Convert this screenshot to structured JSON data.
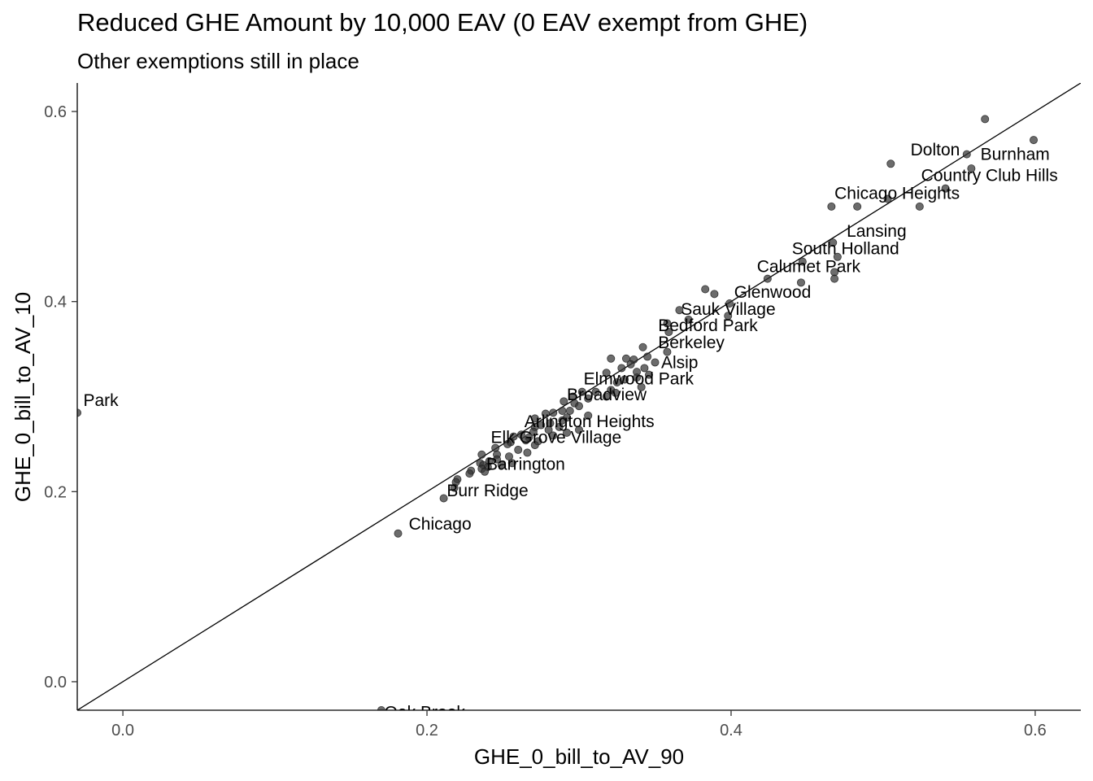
{
  "title": "Reduced GHE Amount by 10,000 EAV (0 EAV exempt from GHE)",
  "subtitle": "Other exemptions still in place",
  "chart_data": {
    "type": "scatter",
    "title": "Reduced GHE Amount by 10,000 EAV (0 EAV exempt from GHE)",
    "subtitle": "Other exemptions still in place",
    "xlabel": "GHE_0_bill_to_AV_90",
    "ylabel": "GHE_0_bill_to_AV_10",
    "xlim": [
      -0.03,
      0.63
    ],
    "ylim": [
      -0.03,
      0.63
    ],
    "x_ticks": [
      0.0,
      0.2,
      0.4,
      0.6
    ],
    "x_tick_labels": [
      "0.0",
      "0.2",
      "0.4",
      "0.6"
    ],
    "y_ticks": [
      0.0,
      0.2,
      0.4,
      0.6
    ],
    "y_tick_labels": [
      "0.0",
      "0.2",
      "0.4",
      "0.6"
    ],
    "grid": false,
    "reference_line": {
      "slope": 1,
      "intercept": 0
    },
    "point_color": "#333333",
    "points": [
      {
        "x": 0.567,
        "y": 0.592
      },
      {
        "x": 0.599,
        "y": 0.57
      },
      {
        "x": 0.555,
        "y": 0.555
      },
      {
        "x": 0.505,
        "y": 0.545
      },
      {
        "x": 0.558,
        "y": 0.54
      },
      {
        "x": 0.541,
        "y": 0.519
      },
      {
        "x": 0.503,
        "y": 0.508
      },
      {
        "x": 0.466,
        "y": 0.5
      },
      {
        "x": 0.483,
        "y": 0.5
      },
      {
        "x": 0.524,
        "y": 0.5
      },
      {
        "x": 0.467,
        "y": 0.462
      },
      {
        "x": 0.47,
        "y": 0.447
      },
      {
        "x": 0.447,
        "y": 0.442
      },
      {
        "x": 0.468,
        "y": 0.431
      },
      {
        "x": 0.468,
        "y": 0.424
      },
      {
        "x": 0.424,
        "y": 0.424
      },
      {
        "x": 0.446,
        "y": 0.42
      },
      {
        "x": 0.383,
        "y": 0.413
      },
      {
        "x": 0.389,
        "y": 0.408
      },
      {
        "x": 0.399,
        "y": 0.398
      },
      {
        "x": 0.366,
        "y": 0.391
      },
      {
        "x": 0.398,
        "y": 0.385
      },
      {
        "x": 0.372,
        "y": 0.381
      },
      {
        "x": 0.358,
        "y": 0.377
      },
      {
        "x": 0.359,
        "y": 0.368
      },
      {
        "x": 0.342,
        "y": 0.352
      },
      {
        "x": 0.358,
        "y": 0.347
      },
      {
        "x": 0.345,
        "y": 0.342
      },
      {
        "x": 0.321,
        "y": 0.34
      },
      {
        "x": 0.331,
        "y": 0.34
      },
      {
        "x": 0.336,
        "y": 0.339
      },
      {
        "x": 0.35,
        "y": 0.336
      },
      {
        "x": 0.334,
        "y": 0.334
      },
      {
        "x": 0.328,
        "y": 0.33
      },
      {
        "x": 0.343,
        "y": 0.33
      },
      {
        "x": 0.338,
        "y": 0.326
      },
      {
        "x": 0.346,
        "y": 0.323
      },
      {
        "x": 0.318,
        "y": 0.325
      },
      {
        "x": 0.338,
        "y": 0.32
      },
      {
        "x": 0.33,
        "y": 0.318
      },
      {
        "x": 0.325,
        "y": 0.315
      },
      {
        "x": 0.341,
        "y": 0.31
      },
      {
        "x": 0.321,
        "y": 0.307
      },
      {
        "x": 0.302,
        "y": 0.305
      },
      {
        "x": 0.311,
        "y": 0.305
      },
      {
        "x": 0.324,
        "y": 0.304
      },
      {
        "x": 0.296,
        "y": 0.3
      },
      {
        "x": 0.318,
        "y": 0.3
      },
      {
        "x": 0.306,
        "y": 0.298
      },
      {
        "x": 0.29,
        "y": 0.295
      },
      {
        "x": 0.297,
        "y": 0.293
      },
      {
        "x": 0.3,
        "y": 0.29
      },
      {
        "x": 0.294,
        "y": 0.285
      },
      {
        "x": 0.289,
        "y": 0.285
      },
      {
        "x": 0.283,
        "y": 0.283
      },
      {
        "x": 0.278,
        "y": 0.282
      },
      {
        "x": 0.306,
        "y": 0.28
      },
      {
        "x": 0.292,
        "y": 0.278
      },
      {
        "x": 0.289,
        "y": 0.275
      },
      {
        "x": 0.271,
        "y": 0.277
      },
      {
        "x": 0.281,
        "y": 0.272
      },
      {
        "x": 0.275,
        "y": 0.27
      },
      {
        "x": 0.271,
        "y": 0.268
      },
      {
        "x": 0.287,
        "y": 0.268
      },
      {
        "x": 0.28,
        "y": 0.265
      },
      {
        "x": 0.27,
        "y": 0.263
      },
      {
        "x": 0.3,
        "y": 0.265
      },
      {
        "x": 0.292,
        "y": 0.262
      },
      {
        "x": 0.283,
        "y": 0.259
      },
      {
        "x": 0.262,
        "y": 0.26
      },
      {
        "x": 0.257,
        "y": 0.258
      },
      {
        "x": 0.267,
        "y": 0.257
      },
      {
        "x": 0.265,
        "y": 0.254
      },
      {
        "x": 0.273,
        "y": 0.253
      },
      {
        "x": 0.255,
        "y": 0.252
      },
      {
        "x": 0.253,
        "y": 0.25
      },
      {
        "x": 0.271,
        "y": 0.249
      },
      {
        "x": 0.245,
        "y": 0.246
      },
      {
        "x": 0.26,
        "y": 0.244
      },
      {
        "x": 0.266,
        "y": 0.241
      },
      {
        "x": 0.246,
        "y": 0.239
      },
      {
        "x": 0.236,
        "y": 0.239
      },
      {
        "x": 0.254,
        "y": 0.237
      },
      {
        "x": 0.246,
        "y": 0.234
      },
      {
        "x": 0.241,
        "y": 0.232
      },
      {
        "x": 0.235,
        "y": 0.23
      },
      {
        "x": 0.256,
        "y": 0.23
      },
      {
        "x": 0.237,
        "y": 0.228
      },
      {
        "x": 0.249,
        "y": 0.228
      },
      {
        "x": 0.24,
        "y": 0.226
      },
      {
        "x": 0.236,
        "y": 0.224
      },
      {
        "x": 0.229,
        "y": 0.222
      },
      {
        "x": 0.238,
        "y": 0.221
      },
      {
        "x": 0.228,
        "y": 0.219
      },
      {
        "x": 0.22,
        "y": 0.213
      },
      {
        "x": 0.219,
        "y": 0.21
      },
      {
        "x": 0.218,
        "y": 0.204
      },
      {
        "x": 0.211,
        "y": 0.193
      },
      {
        "x": 0.181,
        "y": 0.156
      },
      {
        "x": -0.03,
        "y": 0.283
      },
      {
        "x": 0.17,
        "y": -0.03
      }
    ],
    "labels": [
      {
        "text": "Dolton",
        "x": 0.518,
        "y": 0.554
      },
      {
        "text": "Burnham",
        "x": 0.564,
        "y": 0.549
      },
      {
        "text": "Country Club Hills",
        "x": 0.525,
        "y": 0.527
      },
      {
        "text": "Chicago Heights",
        "x": 0.468,
        "y": 0.508
      },
      {
        "text": "Lansing",
        "x": 0.476,
        "y": 0.468
      },
      {
        "text": "South Holland",
        "x": 0.44,
        "y": 0.45
      },
      {
        "text": "Calumet Park",
        "x": 0.417,
        "y": 0.431
      },
      {
        "text": "Glenwood",
        "x": 0.402,
        "y": 0.404
      },
      {
        "text": "Sauk Village",
        "x": 0.367,
        "y": 0.386
      },
      {
        "text": "Bedford Park",
        "x": 0.352,
        "y": 0.369
      },
      {
        "text": "Berkeley",
        "x": 0.352,
        "y": 0.351
      },
      {
        "text": "Alsip",
        "x": 0.354,
        "y": 0.33
      },
      {
        "text": "Elmwood Park",
        "x": 0.303,
        "y": 0.313
      },
      {
        "text": "Broadview",
        "x": 0.292,
        "y": 0.296
      },
      {
        "text": "Arlington Heights",
        "x": 0.264,
        "y": 0.268
      },
      {
        "text": "Elk Grove Village",
        "x": 0.242,
        "y": 0.251
      },
      {
        "text": "Barrington",
        "x": 0.239,
        "y": 0.223
      },
      {
        "text": "Burr Ridge",
        "x": 0.213,
        "y": 0.195
      },
      {
        "text": "Chicago",
        "x": 0.188,
        "y": 0.16
      },
      {
        "text": "Park",
        "x": -0.026,
        "y": 0.29
      },
      {
        "text": "Oak Brook",
        "x": 0.172,
        "y": -0.038
      }
    ]
  }
}
